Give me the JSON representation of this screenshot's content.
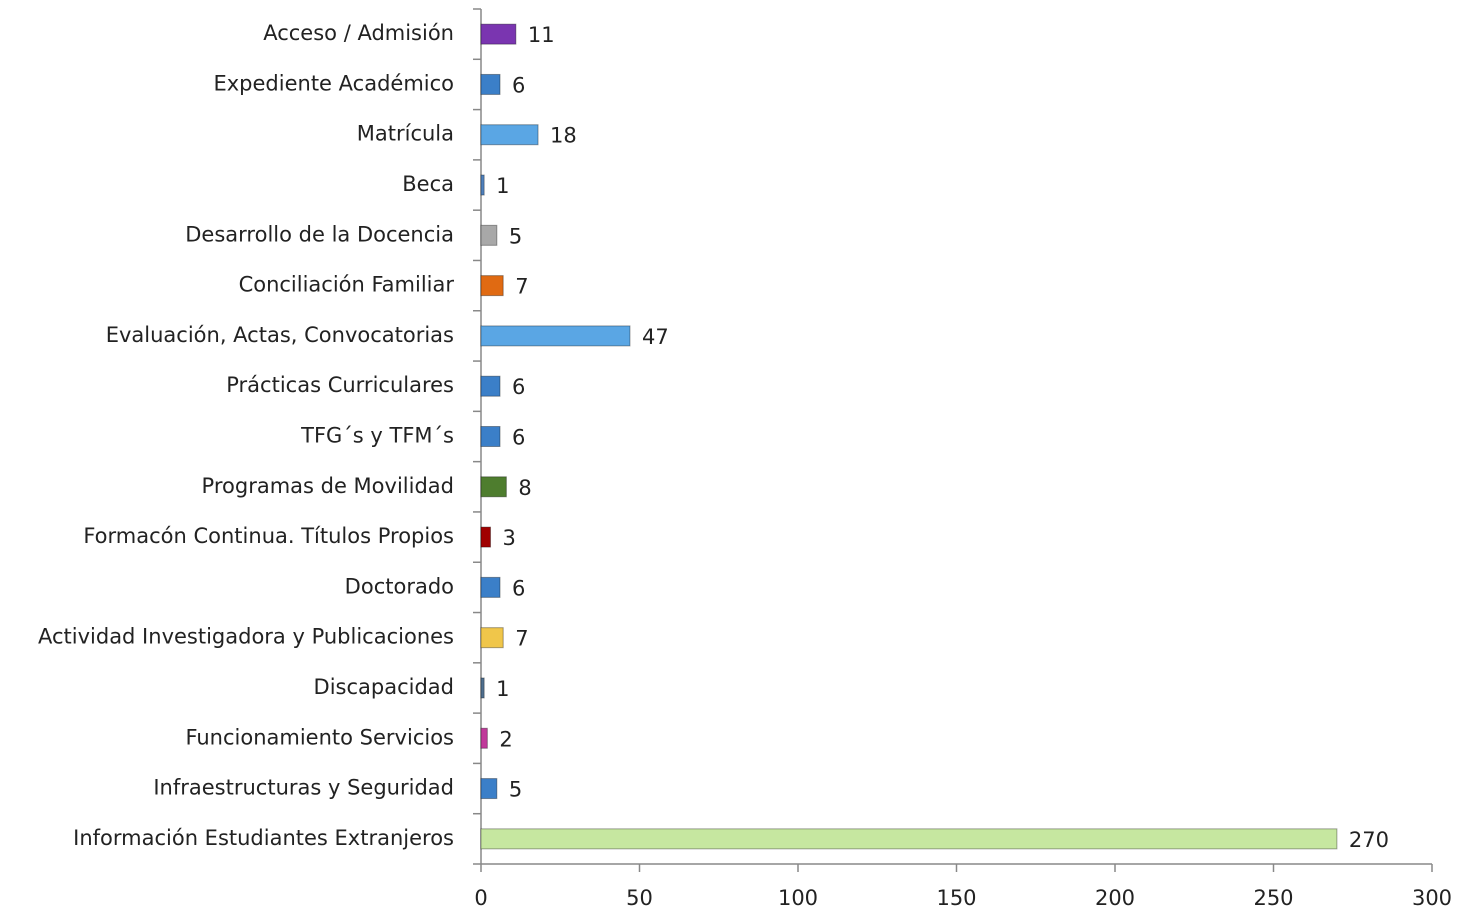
{
  "chart_data": {
    "type": "bar",
    "orientation": "horizontal",
    "categories": [
      "Acceso / Admisión",
      "Expediente Académico",
      "Matrícula",
      "Beca",
      "Desarrollo de la Docencia",
      "Conciliación Familiar",
      "Evaluación, Actas, Convocatorias",
      "Prácticas Curriculares",
      "TFG´s y TFM´s",
      "Programas de Movilidad",
      "Formacón Continua. Títulos Propios",
      "Doctorado",
      "Actividad Investigadora y Publicaciones",
      "Discapacidad",
      "Funcionamiento  Servicios",
      "Infraestructuras y Seguridad",
      "Información Estudiantes Extranjeros"
    ],
    "values": [
      11,
      6,
      18,
      1,
      5,
      7,
      47,
      6,
      6,
      8,
      3,
      6,
      7,
      1,
      2,
      5,
      270
    ],
    "colors": [
      "#7a35b0",
      "#3b7fc8",
      "#5aa6e4",
      "#4f81bd",
      "#a8a8a8",
      "#e06a12",
      "#5aa6e4",
      "#3b7fc8",
      "#3b7fc8",
      "#4e7d2e",
      "#a00000",
      "#3b7fc8",
      "#f0c64a",
      "#4f6f8f",
      "#c0399a",
      "#3b7fc8",
      "#c6e7a0"
    ],
    "xlim": [
      0,
      300
    ],
    "xticks": [
      0,
      50,
      100,
      150,
      200,
      250,
      300
    ]
  }
}
